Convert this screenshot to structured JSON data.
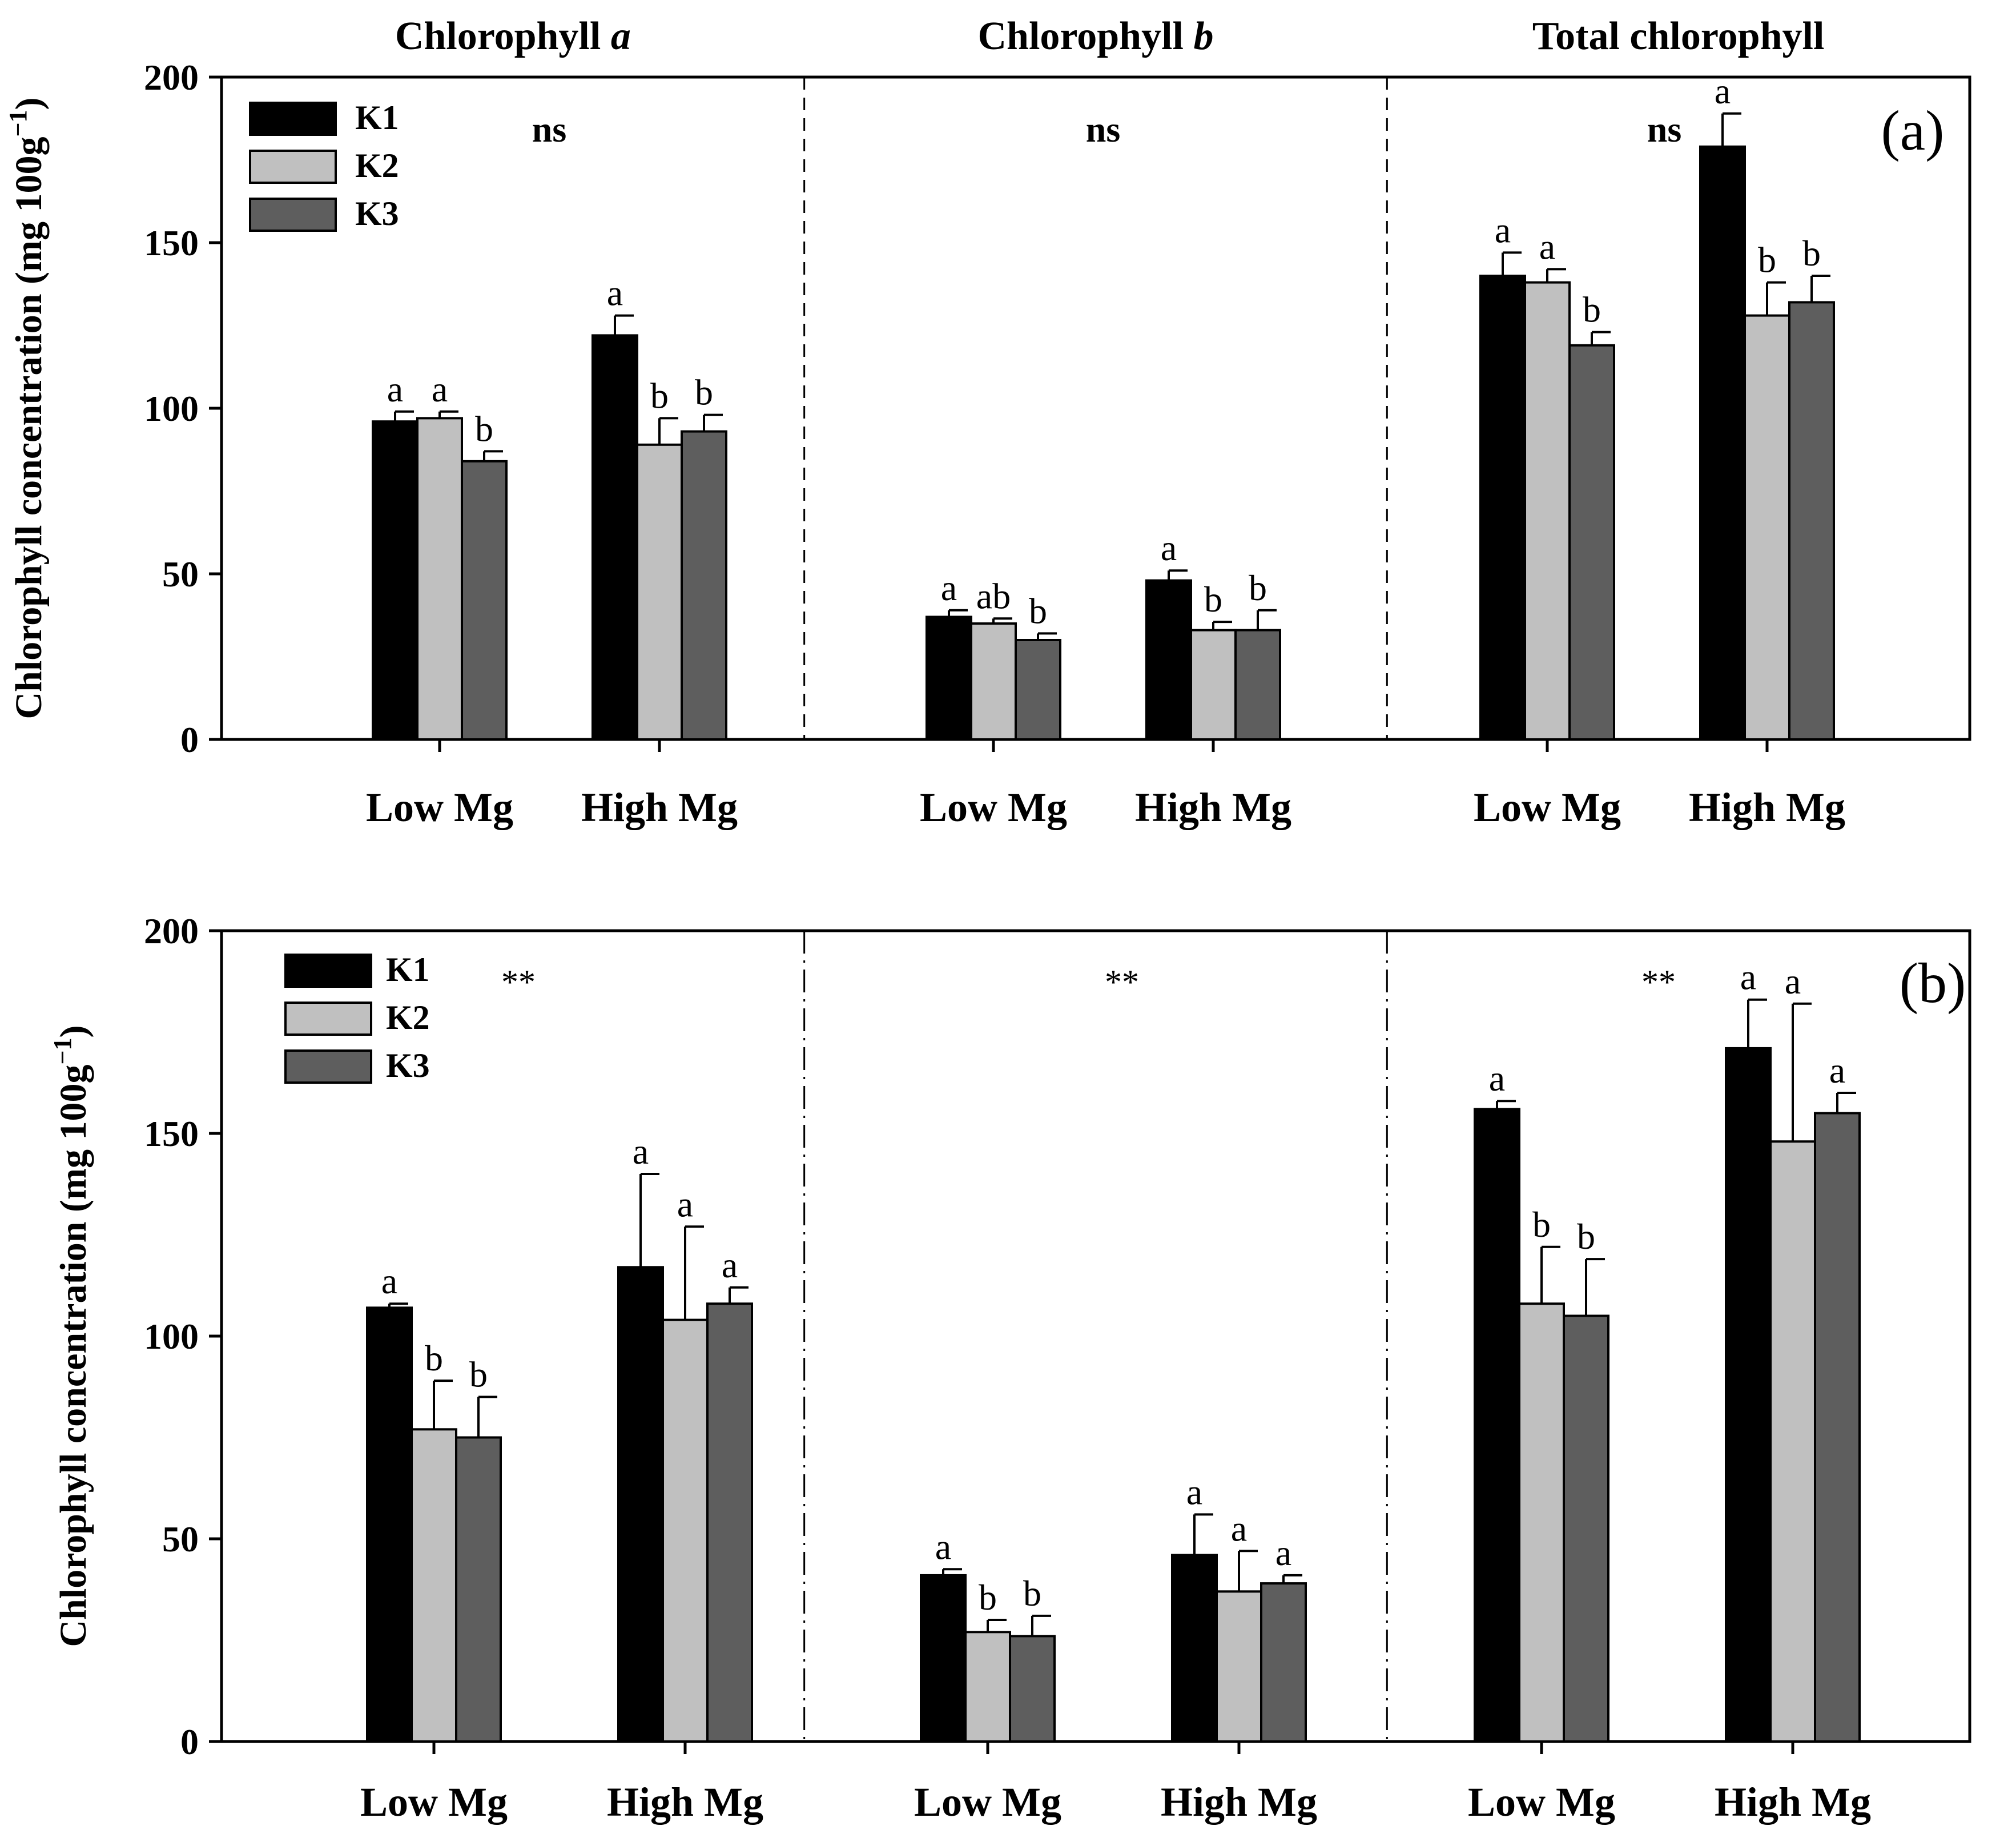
{
  "colors": {
    "K1": "#000000",
    "K2": "#c0c0c0",
    "K3": "#5e5e5e"
  },
  "chart_data": [
    {
      "panel": "(a)",
      "type": "bar",
      "ylabel": "Chlorophyll concentration (mg 100g",
      "ylabel_sup": "−1",
      "ylabel_close": ")",
      "ylim": [
        0,
        200
      ],
      "yticks": [
        0,
        50,
        100,
        150,
        200
      ],
      "legend": [
        "K1",
        "K2",
        "K3"
      ],
      "groups": [
        {
          "title": "Chlorophyll ",
          "title_italic": "a",
          "overall": "ns",
          "categories": [
            "Low Mg",
            "High Mg"
          ],
          "series": [
            {
              "name": "K1",
              "values": [
                96,
                122
              ],
              "errors": [
                3,
                6
              ],
              "letters": [
                "a",
                "a"
              ]
            },
            {
              "name": "K2",
              "values": [
                97,
                89
              ],
              "errors": [
                2,
                8
              ],
              "letters": [
                "a",
                "b"
              ]
            },
            {
              "name": "K3",
              "values": [
                84,
                93
              ],
              "errors": [
                3,
                5
              ],
              "letters": [
                "b",
                "b"
              ]
            }
          ]
        },
        {
          "title": "Chlorophyll ",
          "title_italic": "b",
          "overall": "ns",
          "categories": [
            "Low Mg",
            "High Mg"
          ],
          "series": [
            {
              "name": "K1",
              "values": [
                37,
                48
              ],
              "errors": [
                2,
                3
              ],
              "letters": [
                "a",
                "a"
              ]
            },
            {
              "name": "K2",
              "values": [
                35,
                33
              ],
              "errors": [
                1.5,
                2.5
              ],
              "letters": [
                "ab",
                "b"
              ]
            },
            {
              "name": "K3",
              "values": [
                30,
                33
              ],
              "errors": [
                2,
                6
              ],
              "letters": [
                "b",
                "b"
              ]
            }
          ]
        },
        {
          "title": "Total chlorophyll",
          "title_italic": "",
          "overall": "ns",
          "categories": [
            "Low Mg",
            "High Mg"
          ],
          "series": [
            {
              "name": "K1",
              "values": [
                140,
                179
              ],
              "errors": [
                7,
                10
              ],
              "letters": [
                "a",
                "a"
              ]
            },
            {
              "name": "K2",
              "values": [
                138,
                128
              ],
              "errors": [
                4,
                10
              ],
              "letters": [
                "a",
                "b"
              ]
            },
            {
              "name": "K3",
              "values": [
                119,
                132
              ],
              "errors": [
                4,
                8
              ],
              "letters": [
                "b",
                "b"
              ]
            }
          ]
        }
      ]
    },
    {
      "panel": "(b)",
      "type": "bar",
      "ylabel": "Chlorophyll concentration (mg 100g",
      "ylabel_sup": "−1",
      "ylabel_close": ")",
      "ylim": [
        0,
        200
      ],
      "yticks": [
        0,
        50,
        100,
        150,
        200
      ],
      "legend": [
        "K1",
        "K2",
        "K3"
      ],
      "groups": [
        {
          "overall": "**",
          "categories": [
            "Low Mg",
            "High Mg"
          ],
          "series": [
            {
              "name": "K1",
              "values": [
                107,
                117
              ],
              "errors": [
                1,
                23
              ],
              "letters": [
                "a",
                "a"
              ]
            },
            {
              "name": "K2",
              "values": [
                77,
                104
              ],
              "errors": [
                12,
                23
              ],
              "letters": [
                "b",
                "a"
              ]
            },
            {
              "name": "K3",
              "values": [
                75,
                108
              ],
              "errors": [
                10,
                4
              ],
              "letters": [
                "b",
                "a"
              ]
            }
          ]
        },
        {
          "overall": "**",
          "categories": [
            "Low Mg",
            "High Mg"
          ],
          "series": [
            {
              "name": "K1",
              "values": [
                41,
                46
              ],
              "errors": [
                1.5,
                10
              ],
              "letters": [
                "a",
                "a"
              ]
            },
            {
              "name": "K2",
              "values": [
                27,
                37
              ],
              "errors": [
                3,
                10
              ],
              "letters": [
                "b",
                "a"
              ]
            },
            {
              "name": "K3",
              "values": [
                26,
                39
              ],
              "errors": [
                5,
                2
              ],
              "letters": [
                "b",
                "a"
              ]
            }
          ]
        },
        {
          "overall": "**",
          "categories": [
            "Low Mg",
            "High Mg"
          ],
          "series": [
            {
              "name": "K1",
              "values": [
                156,
                171
              ],
              "errors": [
                2,
                12
              ],
              "letters": [
                "a",
                "a"
              ]
            },
            {
              "name": "K2",
              "values": [
                108,
                148
              ],
              "errors": [
                14,
                34
              ],
              "letters": [
                "b",
                "a"
              ]
            },
            {
              "name": "K3",
              "values": [
                105,
                155
              ],
              "errors": [
                14,
                5
              ],
              "letters": [
                "b",
                "a"
              ]
            }
          ]
        }
      ]
    }
  ]
}
